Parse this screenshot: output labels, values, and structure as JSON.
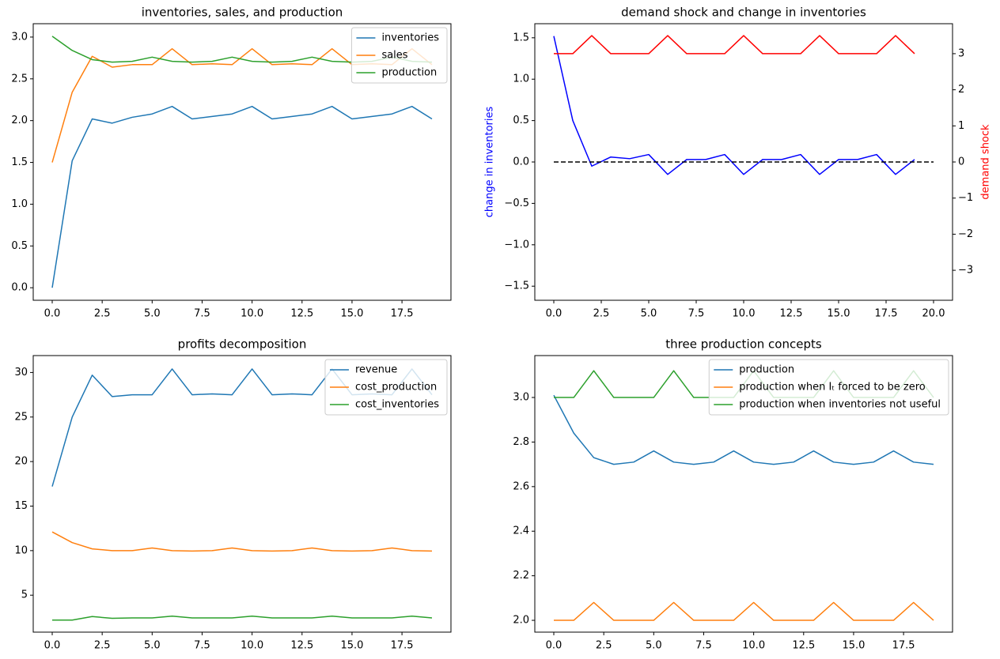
{
  "chart_data": [
    {
      "type": "line",
      "title": "inventories, sales, and production",
      "x": [
        0,
        1,
        2,
        3,
        4,
        5,
        6,
        7,
        8,
        9,
        10,
        11,
        12,
        13,
        14,
        15,
        16,
        17,
        18,
        19
      ],
      "series": [
        {
          "name": "inventories",
          "color": "#1f77b4",
          "values": [
            0.0,
            1.52,
            2.02,
            1.97,
            2.04,
            2.08,
            2.17,
            2.02,
            2.05,
            2.08,
            2.17,
            2.02,
            2.05,
            2.08,
            2.17,
            2.02,
            2.05,
            2.08,
            2.17,
            2.02
          ]
        },
        {
          "name": "sales",
          "color": "#ff7f0e",
          "values": [
            1.5,
            2.34,
            2.77,
            2.64,
            2.67,
            2.67,
            2.86,
            2.67,
            2.68,
            2.67,
            2.86,
            2.67,
            2.68,
            2.67,
            2.86,
            2.67,
            2.68,
            2.67,
            2.86,
            2.67
          ]
        },
        {
          "name": "production",
          "color": "#2ca02c",
          "values": [
            3.01,
            2.84,
            2.73,
            2.7,
            2.71,
            2.76,
            2.71,
            2.7,
            2.71,
            2.76,
            2.71,
            2.7,
            2.71,
            2.76,
            2.71,
            2.7,
            2.71,
            2.76,
            2.71,
            2.7
          ]
        }
      ],
      "xlim": [
        -0.95,
        19.95
      ],
      "xticks": [
        {
          "value": 0,
          "label": "0.0"
        },
        2.5,
        {
          "value": 5,
          "label": "5.0"
        },
        7.5,
        {
          "value": 10,
          "label": "10.0"
        },
        12.5,
        {
          "value": 15,
          "label": "15.0"
        },
        17.5
      ],
      "ylim": [
        -0.15,
        3.16
      ],
      "yticks": [
        {
          "value": 0,
          "label": "0.0"
        },
        0.5,
        {
          "value": 1,
          "label": "1.0"
        },
        1.5,
        {
          "value": 2,
          "label": "2.0"
        },
        2.5,
        {
          "value": 3,
          "label": "3.0"
        }
      ],
      "legend": "upper right"
    },
    {
      "type": "line",
      "title": "demand shock and change in inventories",
      "ylabel": "change in inventories",
      "ylabel_color": "blue",
      "y2label": "demand shock",
      "y2label_color": "red",
      "x": [
        0,
        1,
        2,
        3,
        4,
        5,
        6,
        7,
        8,
        9,
        10,
        11,
        12,
        13,
        14,
        15,
        16,
        17,
        18,
        19
      ],
      "series": [
        {
          "color": "blue",
          "values": [
            1.52,
            0.5,
            -0.05,
            0.06,
            0.04,
            0.09,
            -0.15,
            0.03,
            0.03,
            0.09,
            -0.15,
            0.03,
            0.03,
            0.09,
            -0.15,
            0.03,
            0.03,
            0.09,
            -0.15,
            0.03
          ]
        },
        {
          "color": "black",
          "dash": true,
          "x": [
            0,
            20
          ],
          "values": [
            0,
            0
          ]
        },
        {
          "color": "red",
          "axis": "y2",
          "values": [
            3,
            3,
            3.5,
            3,
            3,
            3,
            3.5,
            3,
            3,
            3,
            3.5,
            3,
            3,
            3,
            3.5,
            3,
            3,
            3,
            3.5,
            3
          ]
        }
      ],
      "xlim": [
        -1,
        21
      ],
      "xticks": [
        {
          "value": 0,
          "label": "0.0"
        },
        2.5,
        {
          "value": 5,
          "label": "5.0"
        },
        7.5,
        {
          "value": 10,
          "label": "10.0"
        },
        12.5,
        {
          "value": 15,
          "label": "15.0"
        },
        17.5,
        {
          "value": 20,
          "label": "20.0"
        }
      ],
      "ylim": [
        -1.67,
        1.67
      ],
      "yticks": [
        {
          "value": -1.5,
          "label": "−1.5"
        },
        {
          "value": -1,
          "label": "−1.0"
        },
        {
          "value": -0.5,
          "label": "−0.5"
        },
        {
          "value": 0,
          "label": "0.0"
        },
        0.5,
        {
          "value": 1,
          "label": "1.0"
        },
        1.5
      ],
      "y2lim": [
        -3.83,
        3.83
      ],
      "y2ticks": [
        {
          "value": -3,
          "label": "−3"
        },
        {
          "value": -2,
          "label": "−2"
        },
        {
          "value": -1,
          "label": "−1"
        },
        0,
        1,
        2,
        3
      ]
    },
    {
      "type": "line",
      "title": "profits decomposition",
      "x": [
        0,
        1,
        2,
        3,
        4,
        5,
        6,
        7,
        8,
        9,
        10,
        11,
        12,
        13,
        14,
        15,
        16,
        17,
        18,
        19
      ],
      "series": [
        {
          "name": "revenue",
          "color": "#1f77b4",
          "values": [
            17.2,
            25.0,
            29.7,
            27.3,
            27.5,
            27.5,
            30.4,
            27.5,
            27.6,
            27.5,
            30.4,
            27.5,
            27.6,
            27.5,
            30.4,
            27.5,
            27.6,
            27.5,
            30.4,
            27.5
          ]
        },
        {
          "name": "cost_production",
          "color": "#ff7f0e",
          "values": [
            12.1,
            10.9,
            10.2,
            10.0,
            10.0,
            10.3,
            10.0,
            9.95,
            10.0,
            10.3,
            10.0,
            9.95,
            10.0,
            10.3,
            10.0,
            9.95,
            10.0,
            10.3,
            10.0,
            9.95
          ]
        },
        {
          "name": "cost_inventories",
          "color": "#2ca02c",
          "values": [
            2.2,
            2.2,
            2.6,
            2.4,
            2.45,
            2.45,
            2.65,
            2.45,
            2.45,
            2.45,
            2.65,
            2.45,
            2.45,
            2.45,
            2.65,
            2.45,
            2.45,
            2.45,
            2.65,
            2.45
          ]
        }
      ],
      "xlim": [
        -0.95,
        19.95
      ],
      "xticks": [
        {
          "value": 0,
          "label": "0.0"
        },
        2.5,
        {
          "value": 5,
          "label": "5.0"
        },
        7.5,
        {
          "value": 10,
          "label": "10.0"
        },
        12.5,
        {
          "value": 15,
          "label": "15.0"
        },
        17.5
      ],
      "ylim": [
        0.85,
        31.9
      ],
      "yticks": [
        5,
        10,
        15,
        20,
        25,
        30
      ],
      "legend": "upper right"
    },
    {
      "type": "line",
      "title": "three production concepts",
      "x": [
        0,
        1,
        2,
        3,
        4,
        5,
        6,
        7,
        8,
        9,
        10,
        11,
        12,
        13,
        14,
        15,
        16,
        17,
        18,
        19
      ],
      "series": [
        {
          "name": "production",
          "color": "#1f77b4",
          "values": [
            3.01,
            2.84,
            2.73,
            2.7,
            2.71,
            2.76,
            2.71,
            2.7,
            2.71,
            2.76,
            2.71,
            2.7,
            2.71,
            2.76,
            2.71,
            2.7,
            2.71,
            2.76,
            2.71,
            2.7
          ]
        },
        {
          "name": "production when Iₜ forced to be zero",
          "color": "#ff7f0e",
          "values": [
            2,
            2,
            2.08,
            2,
            2,
            2,
            2.08,
            2,
            2,
            2,
            2.08,
            2,
            2,
            2,
            2.08,
            2,
            2,
            2,
            2.08,
            2
          ]
        },
        {
          "name": "production when inventories not useful",
          "color": "#2ca02c",
          "values": [
            3,
            3,
            3.12,
            3,
            3,
            3,
            3.12,
            3,
            3,
            3,
            3.12,
            3,
            3,
            3,
            3.12,
            3,
            3,
            3,
            3.12,
            3
          ]
        }
      ],
      "xlim": [
        -0.95,
        19.95
      ],
      "xticks": [
        {
          "value": 0,
          "label": "0.0"
        },
        2.5,
        {
          "value": 5,
          "label": "5.0"
        },
        7.5,
        {
          "value": 10,
          "label": "10.0"
        },
        12.5,
        {
          "value": 15,
          "label": "15.0"
        },
        17.5
      ],
      "ylim": [
        1.947,
        3.188
      ],
      "yticks": [
        {
          "value": 2,
          "label": "2.0"
        },
        2.2,
        2.4,
        2.6,
        2.8,
        {
          "value": 3,
          "label": "3.0"
        }
      ],
      "legend": "upper right"
    }
  ]
}
